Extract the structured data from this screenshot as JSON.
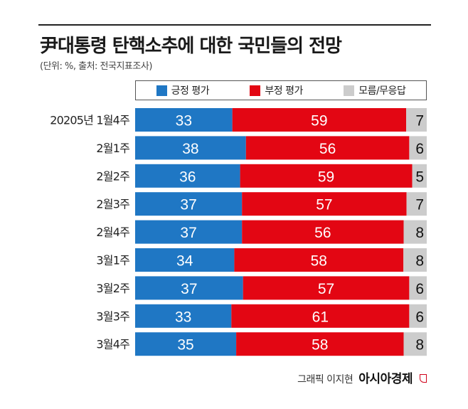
{
  "header": {
    "title": "尹대통령 탄핵소추에 대한 국민들의 전망",
    "subtitle": "(단위: %, 출처: 전국지표조사)"
  },
  "footer": {
    "credit": "그래픽 이지현",
    "brand": "아시아경제"
  },
  "colors": {
    "positive": "#1f77c4",
    "negative": "#e30613",
    "unknown": "#cccccc"
  },
  "chart_data": {
    "type": "bar",
    "orientation": "horizontal-stacked-100",
    "categories": [
      "20205년 1월4주",
      "2월1주",
      "2월2주",
      "2월3주",
      "2월4주",
      "3월1주",
      "3월2주",
      "3월3주",
      "3월4주"
    ],
    "series": [
      {
        "name": "긍정 평가",
        "values": [
          33,
          38,
          36,
          37,
          37,
          34,
          37,
          33,
          35
        ]
      },
      {
        "name": "부정 평가",
        "values": [
          59,
          56,
          59,
          57,
          56,
          58,
          57,
          61,
          58
        ]
      },
      {
        "name": "모름/무응답",
        "values": [
          7,
          6,
          5,
          7,
          8,
          8,
          6,
          6,
          8
        ]
      }
    ],
    "legend": "top"
  }
}
